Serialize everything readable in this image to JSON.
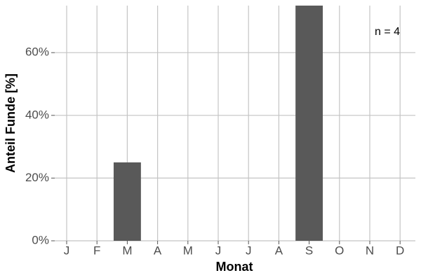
{
  "chart_data": {
    "type": "bar",
    "x_label": "Monat",
    "y_label": "Anteil Funde [%]",
    "annotation": "n = 4",
    "categories": [
      "J",
      "F",
      "M",
      "A",
      "M",
      "J",
      "J",
      "A",
      "S",
      "O",
      "N",
      "D"
    ],
    "values": [
      0,
      0,
      25,
      0,
      0,
      0,
      0,
      0,
      75,
      0,
      0,
      0
    ],
    "color": "#595959",
    "ylim": [
      0,
      75
    ],
    "yticks": [
      {
        "value": 0,
        "label": "0%"
      },
      {
        "value": 20,
        "label": "20%"
      },
      {
        "value": 40,
        "label": "40%"
      },
      {
        "value": 60,
        "label": "60%"
      }
    ],
    "grid": true
  }
}
